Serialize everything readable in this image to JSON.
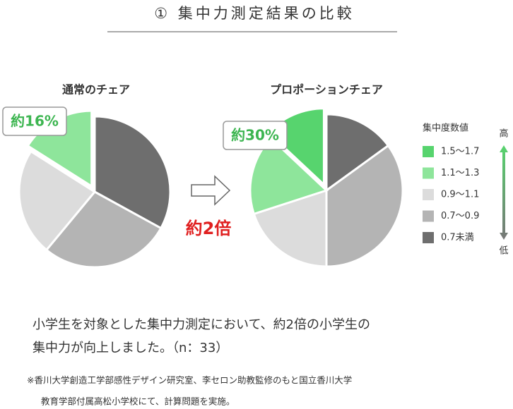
{
  "title": "① 集中力測定結果の比較",
  "chart_data": [
    {
      "type": "pie",
      "title": "通常のチェア",
      "categories": [
        "1.1〜1.3",
        "0.9〜1.1",
        "0.7〜0.9",
        "0.7未満"
      ],
      "values": [
        16,
        23,
        28,
        33
      ],
      "colors": [
        "#8ee59b",
        "#dcdcdc",
        "#b4b4b4",
        "#6e6e6e"
      ],
      "exploded": [
        true,
        false,
        false,
        false
      ],
      "annotation": "約16%"
    },
    {
      "type": "pie",
      "title": "プロポーションチェア",
      "categories": [
        "1.5〜1.7",
        "1.1〜1.3",
        "0.9〜1.1",
        "0.7〜0.9",
        "0.7未満"
      ],
      "values": [
        13,
        17,
        20,
        35,
        15
      ],
      "colors": [
        "#57d46e",
        "#8ee59b",
        "#dcdcdc",
        "#b4b4b4",
        "#6e6e6e"
      ],
      "exploded": [
        true,
        false,
        false,
        false,
        false
      ],
      "annotation": "約30%"
    }
  ],
  "comparison": "約2倍",
  "legend": {
    "title": "集中度数値",
    "high": "高",
    "low": "低"
  },
  "caption": [
    "小学生を対象とした集中力測定において、約2倍の小学生の",
    "集中力が向上しました。（n：33）"
  ],
  "footnote": [
    "※香川大学創造工学部感性デザイン研究室、李セロン助教監修のもと国立香川大学",
    "教育学部付属高松小学校にて、計算問題を実施。"
  ]
}
